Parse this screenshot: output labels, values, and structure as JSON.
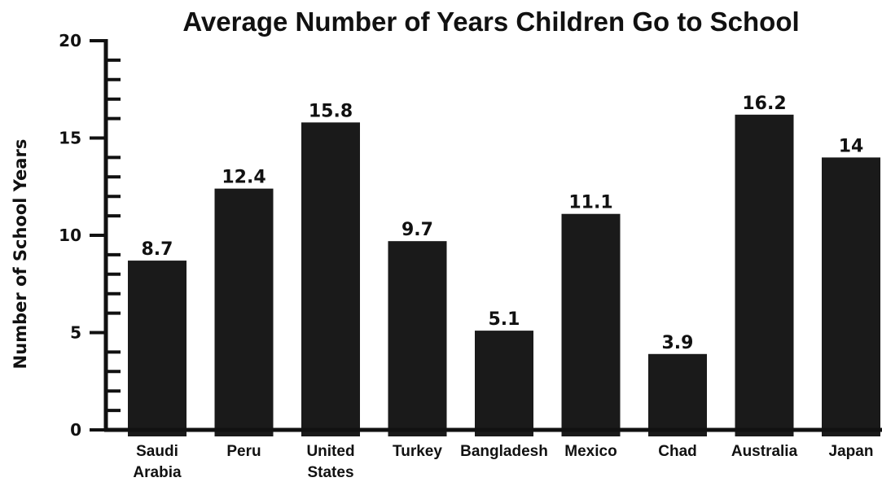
{
  "chart_data": {
    "type": "bar",
    "title": "Average Number of Years Children Go to School",
    "xlabel": "",
    "ylabel": "Number of School Years",
    "categories": [
      [
        "Saudi",
        "Arabia"
      ],
      [
        "Peru"
      ],
      [
        "United",
        "States"
      ],
      [
        "Turkey"
      ],
      [
        "Bangladesh"
      ],
      [
        "Mexico"
      ],
      [
        "Chad"
      ],
      [
        "Australia"
      ],
      [
        "Japan"
      ]
    ],
    "values": [
      8.7,
      12.4,
      15.8,
      9.7,
      5.1,
      11.1,
      3.9,
      16.2,
      14
    ],
    "value_labels": [
      "8.7",
      "12.4",
      "15.8",
      "9.7",
      "5.1",
      "11.1",
      "3.9",
      "16.2",
      "14"
    ],
    "ylim": [
      0,
      20
    ],
    "yticks": [
      0,
      5,
      10,
      15,
      20
    ],
    "minor_tick_step": 1,
    "grid": false,
    "colors": {
      "bar": "#1a1a1a",
      "axis": "#111111",
      "text": "#111111"
    }
  }
}
